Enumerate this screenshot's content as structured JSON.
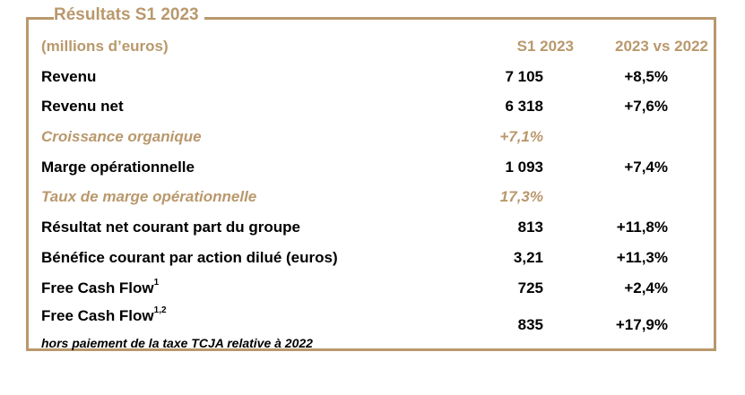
{
  "title": "Résultats S1 2023",
  "header": {
    "label": "(millions d’euros)",
    "col1": "S1 2023",
    "col2": "2023 vs 2022"
  },
  "rows": [
    {
      "label": "Revenu",
      "v1": "7 105",
      "v2": "+8,5%"
    },
    {
      "label": "Revenu net",
      "v1": "6 318",
      "v2": "+7,6%"
    },
    {
      "label": "Croissance organique",
      "v1": "+7,1%",
      "v2": ""
    },
    {
      "label": "Marge opérationnelle",
      "v1": "1 093",
      "v2": "+7,4%"
    },
    {
      "label": "Taux de marge opérationnelle",
      "v1": "17,3%",
      "v2": ""
    },
    {
      "label": "Résultat net courant part du groupe",
      "v1": "813",
      "v2": "+11,8%"
    },
    {
      "label": "Bénéfice courant par action dilué (euros)",
      "v1": "3,21",
      "v2": "+11,3%"
    },
    {
      "label": "Free Cash Flow",
      "sup": "1",
      "v1": "725",
      "v2": "+2,4%"
    },
    {
      "label": "Free Cash Flow",
      "sup": "1,2",
      "v1": "835",
      "v2": "+17,9%",
      "note": "hors paiement de la taxe TCJA relative à 2022"
    }
  ],
  "colors": {
    "accent": "#b9986c",
    "text": "#000000"
  }
}
